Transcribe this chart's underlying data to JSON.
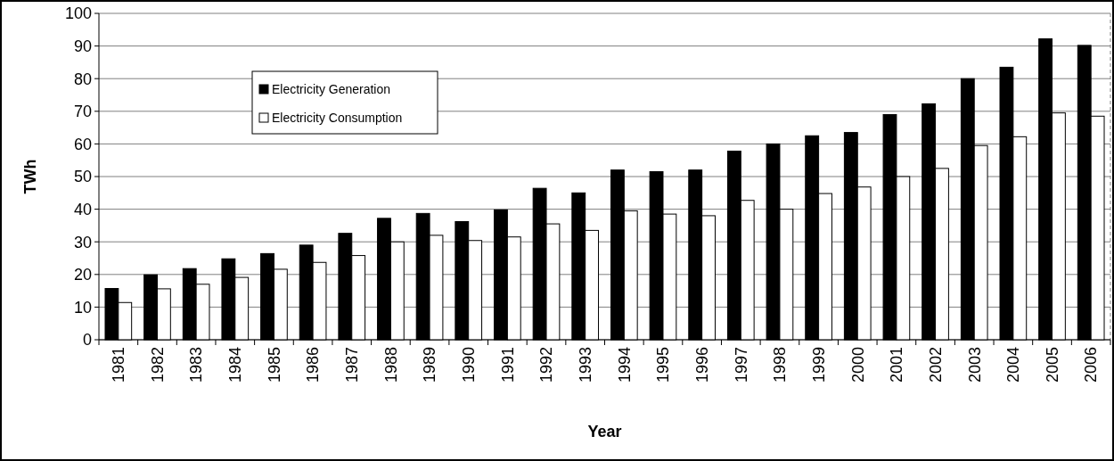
{
  "chart_data": {
    "type": "bar",
    "xlabel": "Year",
    "ylabel": "TWh",
    "categories": [
      "1981",
      "1982",
      "1983",
      "1984",
      "1985",
      "1986",
      "1987",
      "1988",
      "1989",
      "1990",
      "1991",
      "1992",
      "1993",
      "1994",
      "1995",
      "1996",
      "1997",
      "1998",
      "1999",
      "2000",
      "2001",
      "2002",
      "2003",
      "2004",
      "2005",
      "2006"
    ],
    "series": [
      {
        "name": "Electricity Generation",
        "color": "#000000",
        "values": [
          15.7,
          19.9,
          21.8,
          24.8,
          26.4,
          29,
          32.6,
          37.2,
          38.7,
          36.2,
          39.8,
          46.4,
          45,
          52,
          51.5,
          52,
          57.8,
          60,
          62.5,
          63.5,
          69,
          72.3,
          80,
          83.5,
          92.2,
          90.2
        ]
      },
      {
        "name": "Electricity Consumption",
        "color": "#ffffff",
        "values": [
          11.4,
          15.6,
          17,
          19.1,
          21.6,
          23.7,
          25.8,
          30,
          32,
          30.4,
          31.5,
          35.5,
          33.5,
          39.5,
          38.5,
          38,
          42.7,
          40,
          44.8,
          46.8,
          50,
          52.5,
          59.5,
          62.2,
          69.5,
          68.5
        ]
      }
    ],
    "ylim": [
      0,
      100
    ],
    "yticks": [
      0,
      10,
      20,
      30,
      40,
      50,
      60,
      70,
      80,
      90,
      100
    ],
    "grid": "y",
    "legend": "top left"
  }
}
